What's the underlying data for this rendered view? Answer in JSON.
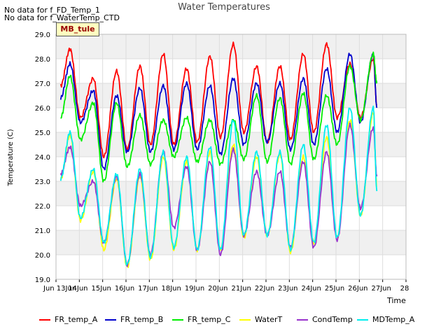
{
  "notes": [
    "No data for f_FD_Temp_1",
    "No data for f_WaterTemp_CTD"
  ],
  "badge": "MB_tule",
  "colors": {
    "FR_temp_A": "#ff0000",
    "FR_temp_B": "#0000cc",
    "FR_temp_C": "#00ee00",
    "WaterT": "#ffff00",
    "CondTemp": "#9933cc",
    "MDTemp_A": "#00eeee",
    "band": "#f0f0f0",
    "grid": "#dddddd"
  },
  "chart_data": {
    "type": "line",
    "title": "Water Temperatures",
    "xlabel": "Time",
    "ylabel": "Temperature (C)",
    "xlim": [
      13,
      28
    ],
    "ylim": [
      19.0,
      29.0
    ],
    "x_ticks": [
      "Jun 13",
      "Jun 14",
      "Jun 15",
      "Jun 16",
      "Jun 17",
      "Jun 18",
      "Jun 19",
      "Jun 20",
      "Jun 21",
      "Jun 22",
      "Jun 23",
      "Jun 24",
      "Jun 25",
      "Jun 26",
      "Jun 27",
      "Jun 28"
    ],
    "x_tick_labels": [
      "Jun 13Jun",
      "14Jun",
      "15Jun",
      "16Jun",
      "17Jun",
      "18Jun",
      "19Jun",
      "20Jun",
      "21Jun",
      "22Jun",
      "23Jun",
      "24Jun",
      "25Jun",
      "26Jun",
      "27Jun",
      "28"
    ],
    "y_ticks": [
      "19.0",
      "20.0",
      "21.0",
      "22.0",
      "23.0",
      "24.0",
      "25.0",
      "26.0",
      "27.0",
      "28.0",
      "29.0"
    ],
    "legend_position": "bottom",
    "grid": true,
    "daily_peak_time": 0.6,
    "series": [
      {
        "name": "FR_temp_A",
        "x_start": 13.2,
        "x_end": 26.75,
        "start_value": 26.9,
        "peaks": [
          28.4,
          27.2,
          27.5,
          27.7,
          28.2,
          27.6,
          28.1,
          28.6,
          27.7,
          27.7,
          28.2,
          28.6,
          27.8,
          28.0
        ],
        "troughs": [
          25.6,
          24.0,
          24.3,
          24.5,
          24.5,
          24.6,
          24.8,
          25.0,
          24.6,
          24.7,
          25.0,
          25.6,
          25.6,
          26.0
        ],
        "end_value": 26.1
      },
      {
        "name": "FR_temp_B",
        "x_start": 13.2,
        "x_end": 26.75,
        "start_value": 26.4,
        "peaks": [
          27.8,
          26.7,
          26.5,
          26.8,
          26.9,
          27.0,
          26.9,
          27.2,
          27.0,
          27.0,
          27.2,
          27.6,
          28.2,
          28.2
        ],
        "troughs": [
          25.4,
          23.5,
          24.2,
          24.2,
          24.3,
          24.3,
          24.1,
          24.5,
          24.6,
          24.3,
          24.5,
          25.0,
          25.4,
          26.0
        ],
        "end_value": 26.0
      },
      {
        "name": "FR_temp_C",
        "x_start": 13.2,
        "x_end": 26.75,
        "start_value": 25.6,
        "peaks": [
          27.3,
          26.2,
          26.2,
          25.7,
          25.5,
          25.6,
          25.5,
          25.5,
          26.5,
          26.4,
          26.6,
          26.5,
          27.7,
          28.2
        ],
        "troughs": [
          24.7,
          23.0,
          23.6,
          23.7,
          24.0,
          23.8,
          23.7,
          23.9,
          23.8,
          23.7,
          23.9,
          24.5,
          25.5,
          26.2
        ],
        "end_value": 27.0
      },
      {
        "name": "WaterT",
        "x_start": 13.2,
        "x_end": 26.75,
        "start_value": 23.1,
        "peaks": [
          24.9,
          23.4,
          23.1,
          23.2,
          24.0,
          23.8,
          24.2,
          24.5,
          24.0,
          24.1,
          24.0,
          24.8,
          25.5,
          25.8
        ],
        "troughs": [
          21.4,
          20.2,
          19.5,
          19.8,
          20.2,
          20.2,
          20.2,
          20.7,
          20.8,
          20.1,
          20.5,
          20.7,
          21.6,
          21.6
        ],
        "end_value": 22.8
      },
      {
        "name": "CondTemp",
        "x_start": 13.2,
        "x_end": 26.75,
        "start_value": 23.3,
        "peaks": [
          24.4,
          23.0,
          23.2,
          23.3,
          24.2,
          23.6,
          23.8,
          24.3,
          23.4,
          23.4,
          23.8,
          24.2,
          25.3,
          25.2
        ],
        "troughs": [
          22.0,
          20.5,
          19.6,
          20.0,
          21.1,
          20.2,
          20.0,
          20.8,
          20.8,
          20.3,
          20.3,
          20.6,
          21.9,
          21.6
        ],
        "end_value": 23.2
      },
      {
        "name": "MDTemp_A",
        "x_start": 13.2,
        "x_end": 26.75,
        "start_value": 23.1,
        "peaks": [
          25.0,
          23.5,
          23.3,
          23.5,
          24.2,
          24.0,
          24.4,
          25.5,
          24.2,
          24.2,
          24.5,
          25.3,
          26.0,
          26.0
        ],
        "troughs": [
          21.5,
          20.5,
          19.6,
          19.9,
          20.3,
          20.2,
          20.2,
          20.8,
          20.8,
          20.2,
          20.5,
          20.7,
          21.6,
          21.6
        ],
        "end_value": 22.6
      }
    ]
  }
}
